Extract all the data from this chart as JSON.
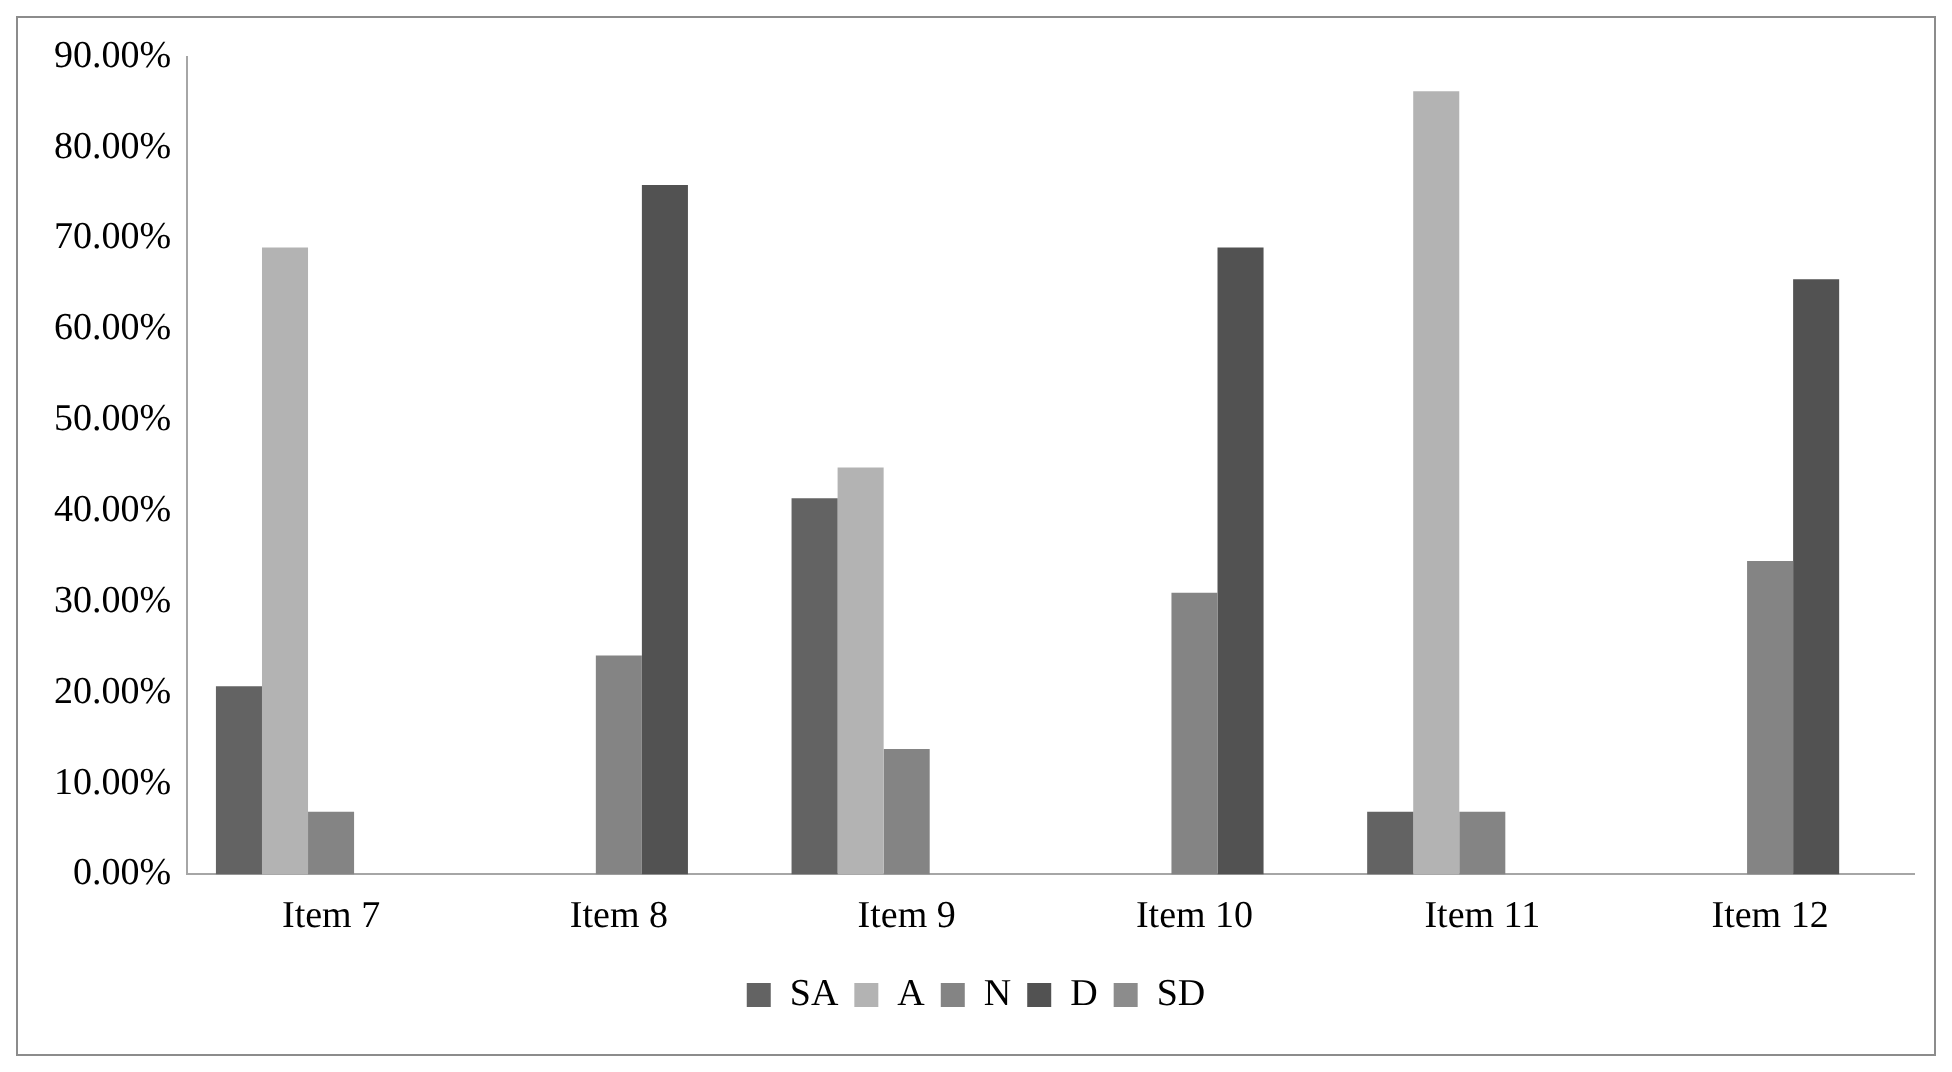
{
  "chart_data": {
    "type": "bar",
    "categories": [
      "Item 7",
      "Item 8",
      "Item 9",
      "Item 10",
      "Item 11",
      "Item 12"
    ],
    "series": [
      {
        "name": "SA",
        "color": "#636363",
        "values": [
          20.7,
          0,
          41.4,
          0,
          6.9,
          0
        ]
      },
      {
        "name": "A",
        "color": "#b3b3b3",
        "values": [
          69.0,
          0,
          44.8,
          0,
          86.2,
          0
        ]
      },
      {
        "name": "N",
        "color": "#848484",
        "values": [
          6.9,
          24.1,
          13.8,
          31.0,
          6.9,
          34.5
        ]
      },
      {
        "name": "D",
        "color": "#525252",
        "values": [
          0,
          75.9,
          0,
          69.0,
          0,
          65.5
        ]
      },
      {
        "name": "SD",
        "color": "#8c8c8c",
        "values": [
          0,
          0,
          0,
          0,
          0,
          0
        ]
      }
    ],
    "ylim": [
      0,
      90
    ],
    "yticks": [
      {
        "value": 0,
        "label": "0.00%"
      },
      {
        "value": 10,
        "label": "10.00%"
      },
      {
        "value": 20,
        "label": "20.00%"
      },
      {
        "value": 30,
        "label": "30.00%"
      },
      {
        "value": 40,
        "label": "40.00%"
      },
      {
        "value": 50,
        "label": "50.00%"
      },
      {
        "value": 60,
        "label": "60.00%"
      },
      {
        "value": 70,
        "label": "70.00%"
      },
      {
        "value": 80,
        "label": "80.00%"
      },
      {
        "value": 90,
        "label": "90.00%"
      }
    ],
    "grid": false,
    "legend": "bottom"
  }
}
